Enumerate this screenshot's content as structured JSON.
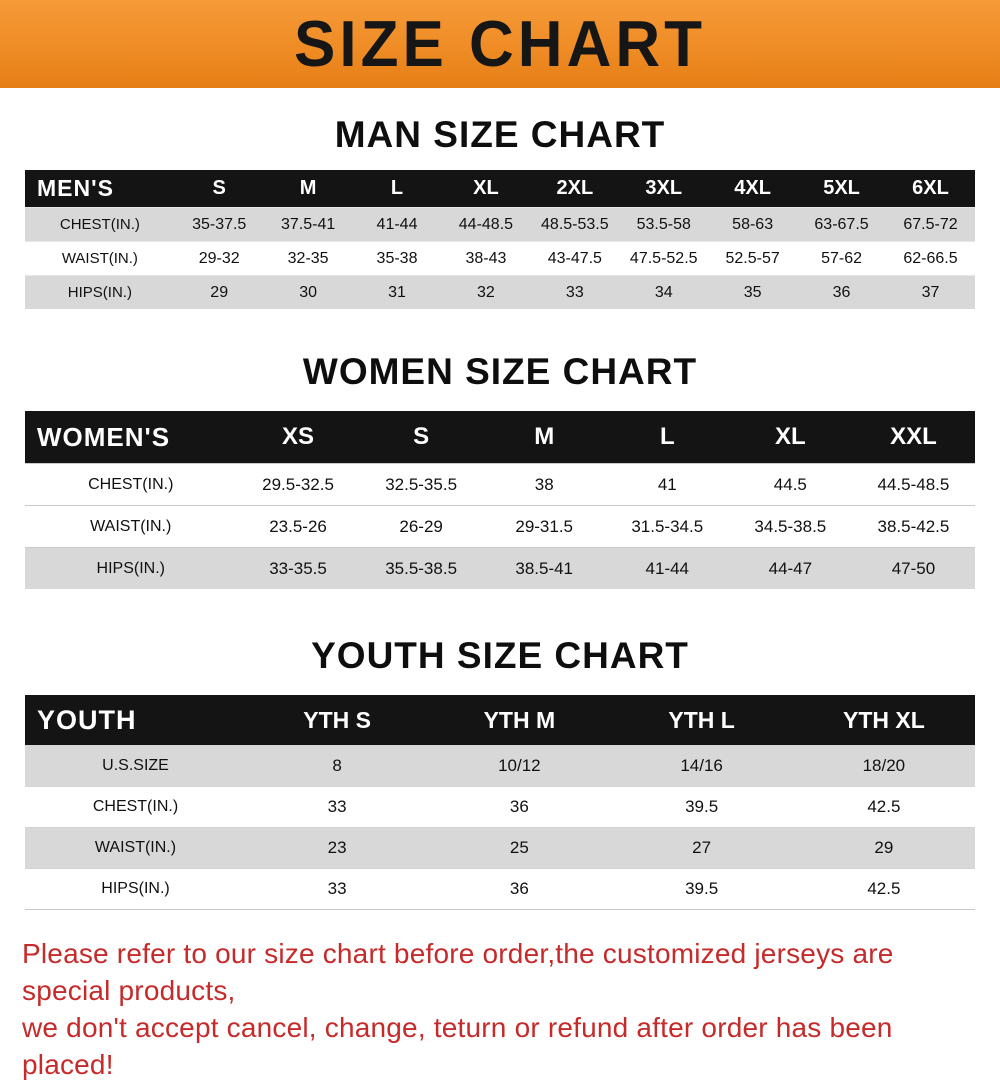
{
  "banner": {
    "title": "SIZE CHART"
  },
  "men": {
    "heading": "MAN SIZE CHART",
    "header": [
      "MEN'S",
      "S",
      "M",
      "L",
      "XL",
      "2XL",
      "3XL",
      "4XL",
      "5XL",
      "6XL"
    ],
    "rows": [
      {
        "label": "CHEST(IN.)",
        "values": [
          "35-37.5",
          "37.5-41",
          "41-44",
          "44-48.5",
          "48.5-53.5",
          "53.5-58",
          "58-63",
          "63-67.5",
          "67.5-72"
        ]
      },
      {
        "label": "WAIST(IN.)",
        "values": [
          "29-32",
          "32-35",
          "35-38",
          "38-43",
          "43-47.5",
          "47.5-52.5",
          "52.5-57",
          "57-62",
          "62-66.5"
        ]
      },
      {
        "label": "HIPS(IN.)",
        "values": [
          "29",
          "30",
          "31",
          "32",
          "33",
          "34",
          "35",
          "36",
          "37"
        ]
      }
    ]
  },
  "women": {
    "heading": "WOMEN SIZE CHART",
    "header": [
      "WOMEN'S",
      "XS",
      "S",
      "M",
      "L",
      "XL",
      "XXL"
    ],
    "rows": [
      {
        "label": "CHEST(IN.)",
        "values": [
          "29.5-32.5",
          "32.5-35.5",
          "38",
          "41",
          "44.5",
          "44.5-48.5"
        ]
      },
      {
        "label": "WAIST(IN.)",
        "values": [
          "23.5-26",
          "26-29",
          "29-31.5",
          "31.5-34.5",
          "34.5-38.5",
          "38.5-42.5"
        ]
      },
      {
        "label": "HIPS(IN.)",
        "values": [
          "33-35.5",
          "35.5-38.5",
          "38.5-41",
          "41-44",
          "44-47",
          "47-50"
        ]
      }
    ]
  },
  "youth": {
    "heading": "YOUTH SIZE CHART",
    "header": [
      "YOUTH",
      "YTH S",
      "YTH M",
      "YTH L",
      "YTH XL"
    ],
    "rows": [
      {
        "label": "U.S.SIZE",
        "values": [
          "8",
          "10/12",
          "14/16",
          "18/20"
        ]
      },
      {
        "label": "CHEST(IN.)",
        "values": [
          "33",
          "36",
          "39.5",
          "42.5"
        ]
      },
      {
        "label": "WAIST(IN.)",
        "values": [
          "23",
          "25",
          "27",
          "29"
        ]
      },
      {
        "label": "HIPS(IN.)",
        "values": [
          "33",
          "36",
          "39.5",
          "42.5"
        ]
      }
    ]
  },
  "footer": {
    "line1": "Please refer to our size chart before order,the customized jerseys are special products,",
    "line2": "we don't accept cancel, change, teturn or refund after order has been placed!"
  }
}
